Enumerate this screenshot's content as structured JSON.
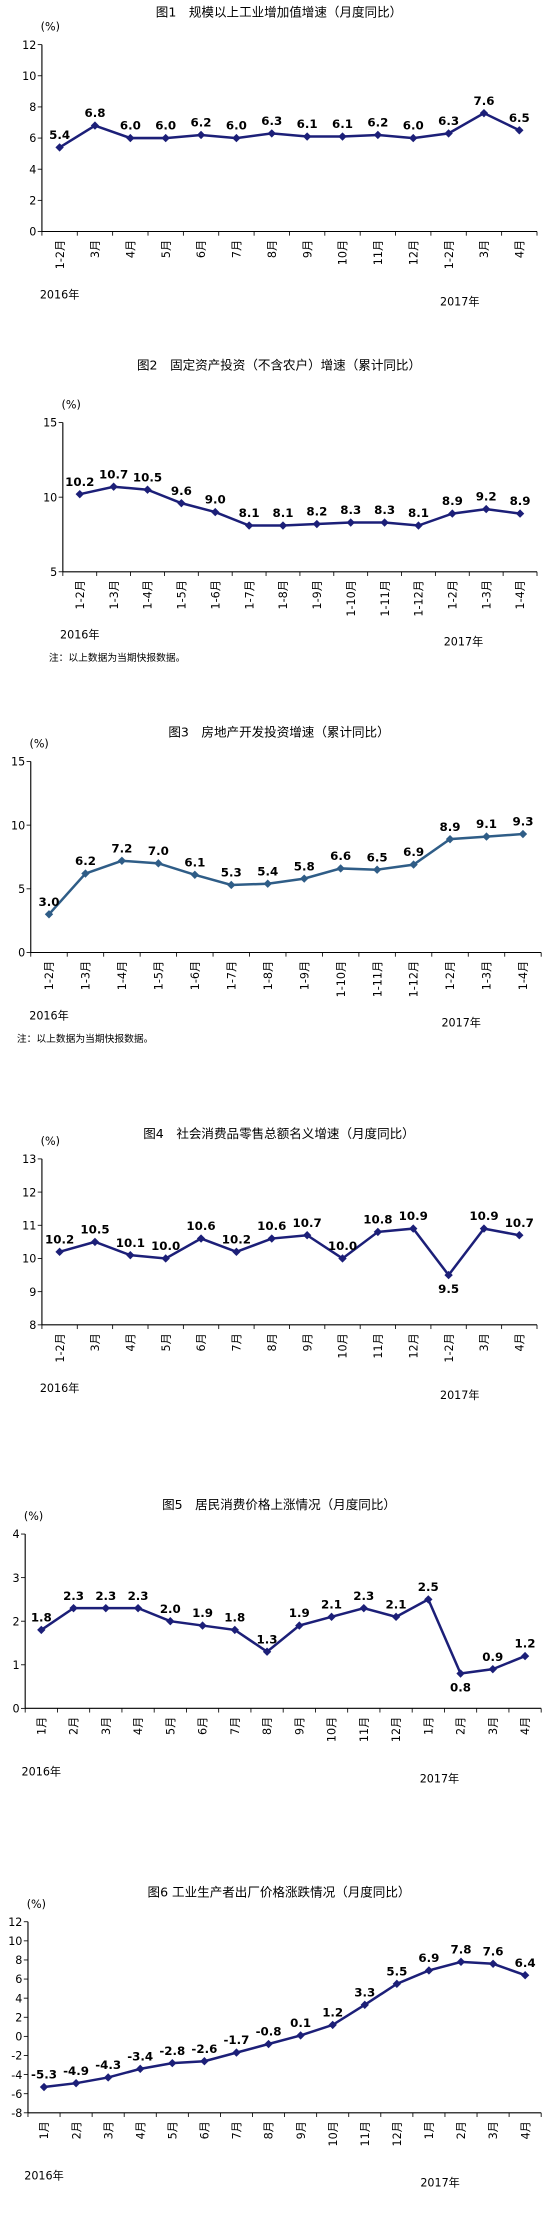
{
  "chart_data": [
    {
      "type": "line",
      "title": "图1　规模以上工业增加值增速（月度同比）",
      "unit": "(%)",
      "categories": [
        "1-2月",
        "3月",
        "4月",
        "5月",
        "6月",
        "7月",
        "8月",
        "9月",
        "10月",
        "11月",
        "12月",
        "1-2月",
        "3月",
        "4月"
      ],
      "year_labels": [
        "2016年",
        "2017年"
      ],
      "values": [
        5.4,
        6.8,
        6.0,
        6.0,
        6.2,
        6.0,
        6.3,
        6.1,
        6.1,
        6.2,
        6.0,
        6.3,
        7.6,
        6.5
      ],
      "value_labels": [
        "5.4",
        "6.8",
        "6.0",
        "6.0",
        "6.2",
        "6.0",
        "6.3",
        "6.1",
        "6.1",
        "6.2",
        "6.0",
        "6.3",
        "7.6",
        "6.5"
      ],
      "color": "#1c1f78",
      "ylim": [
        0,
        12
      ],
      "yticks": [
        0,
        2,
        4,
        6,
        8,
        10,
        12
      ]
    },
    {
      "type": "line",
      "title": "图2　固定资产投资（不含农户）增速（累计同比）",
      "unit": "(%)",
      "categories": [
        "1-2月",
        "1-3月",
        "1-4月",
        "1-5月",
        "1-6月",
        "1-7月",
        "1-8月",
        "1-9月",
        "1-10月",
        "1-11月",
        "1-12月",
        "1-2月",
        "1-3月",
        "1-4月"
      ],
      "year_labels": [
        "2016年",
        "2017年"
      ],
      "values": [
        10.2,
        10.7,
        10.5,
        9.6,
        9.0,
        8.1,
        8.1,
        8.2,
        8.3,
        8.3,
        8.1,
        8.9,
        9.2,
        8.9
      ],
      "value_labels": [
        "10.2",
        "10.7",
        "10.5",
        "9.6",
        "9.0",
        "8.1",
        "8.1",
        "8.2",
        "8.3",
        "8.3",
        "8.1",
        "8.9",
        "9.2",
        "8.9"
      ],
      "color": "#1c1f78",
      "ylim": [
        5,
        15
      ],
      "yticks": [
        5,
        10,
        15
      ],
      "note": "注：以上数据为当期快报数据。"
    },
    {
      "type": "line",
      "title": "图3　房地产开发投资增速（累计同比）",
      "unit": "(%)",
      "categories": [
        "1-2月",
        "1-3月",
        "1-4月",
        "1-5月",
        "1-6月",
        "1-7月",
        "1-8月",
        "1-9月",
        "1-10月",
        "1-11月",
        "1-12月",
        "1-2月",
        "1-3月",
        "1-4月"
      ],
      "year_labels": [
        "2016年",
        "2017年"
      ],
      "values": [
        3.0,
        6.2,
        7.2,
        7.0,
        6.1,
        5.3,
        5.4,
        5.8,
        6.6,
        6.5,
        6.9,
        8.9,
        9.1,
        9.3
      ],
      "value_labels": [
        "3.0",
        "6.2",
        "7.2",
        "7.0",
        "6.1",
        "5.3",
        "5.4",
        "5.8",
        "6.6",
        "6.5",
        "6.9",
        "8.9",
        "9.1",
        "9.3"
      ],
      "color": "#2f5d87",
      "ylim": [
        0,
        15
      ],
      "yticks": [
        0,
        5,
        10,
        15
      ],
      "note": "注：以上数据为当期快报数据。"
    },
    {
      "type": "line",
      "title": "图4　社会消费品零售总额名义增速（月度同比）",
      "unit": "(%)",
      "categories": [
        "1-2月",
        "3月",
        "4月",
        "5月",
        "6月",
        "7月",
        "8月",
        "9月",
        "10月",
        "11月",
        "12月",
        "1-2月",
        "3月",
        "4月"
      ],
      "year_labels": [
        "2016年",
        "2017年"
      ],
      "values": [
        10.2,
        10.5,
        10.1,
        10.0,
        10.6,
        10.2,
        10.6,
        10.7,
        10.0,
        10.8,
        10.9,
        9.5,
        10.9,
        10.7
      ],
      "value_labels": [
        "10.2",
        "10.5",
        "10.1",
        "10.0",
        "10.6",
        "10.2",
        "10.6",
        "10.7",
        "10.0",
        "10.8",
        "10.9",
        "9.5",
        "10.9",
        "10.7"
      ],
      "color": "#1c1f78",
      "ylim": [
        8,
        13
      ],
      "yticks": [
        8,
        9,
        10,
        11,
        12,
        13
      ]
    },
    {
      "type": "line",
      "title": "图5　居民消费价格上涨情况（月度同比）",
      "unit": "(%)",
      "categories": [
        "1月",
        "2月",
        "3月",
        "4月",
        "5月",
        "6月",
        "7月",
        "8月",
        "9月",
        "10月",
        "11月",
        "12月",
        "1月",
        "2月",
        "3月",
        "4月"
      ],
      "year_labels": [
        "2016年",
        "2017年"
      ],
      "values": [
        1.8,
        2.3,
        2.3,
        2.3,
        2.0,
        1.9,
        1.8,
        1.3,
        1.9,
        2.1,
        2.3,
        2.1,
        2.5,
        0.8,
        0.9,
        1.2
      ],
      "value_labels": [
        "1.8",
        "2.3",
        "2.3",
        "2.3",
        "2.0",
        "1.9",
        "1.8",
        "1.3",
        "1.9",
        "2.1",
        "2.3",
        "2.1",
        "2.5",
        "0.8",
        "0.9",
        "1.2"
      ],
      "color": "#1c1f78",
      "ylim": [
        0,
        4
      ],
      "yticks": [
        0,
        1,
        2,
        3,
        4
      ]
    },
    {
      "type": "line",
      "title": "图6 工业生产者出厂价格涨跌情况（月度同比）",
      "unit": "(%)",
      "categories": [
        "1月",
        "2月",
        "3月",
        "4月",
        "5月",
        "6月",
        "7月",
        "8月",
        "9月",
        "10月",
        "11月",
        "12月",
        "1月",
        "2月",
        "3月",
        "4月"
      ],
      "year_labels": [
        "2016年",
        "2017年"
      ],
      "values": [
        -5.3,
        -4.9,
        -4.3,
        -3.4,
        -2.8,
        -2.6,
        -1.7,
        -0.8,
        0.1,
        1.2,
        3.3,
        5.5,
        6.9,
        7.8,
        7.6,
        6.4
      ],
      "value_labels": [
        "-5.3",
        "-4.9",
        "-4.3",
        "-3.4",
        "-2.8",
        "-2.6",
        "-1.7",
        "-0.8",
        "0.1",
        "1.2",
        "3.3",
        "5.5",
        "6.9",
        "7.8",
        "7.6",
        "6.4"
      ],
      "color": "#1c1f78",
      "ylim": [
        -8,
        12
      ],
      "yticks": [
        -8,
        -6,
        -4,
        -2,
        0,
        2,
        4,
        6,
        8,
        10,
        12
      ]
    }
  ]
}
